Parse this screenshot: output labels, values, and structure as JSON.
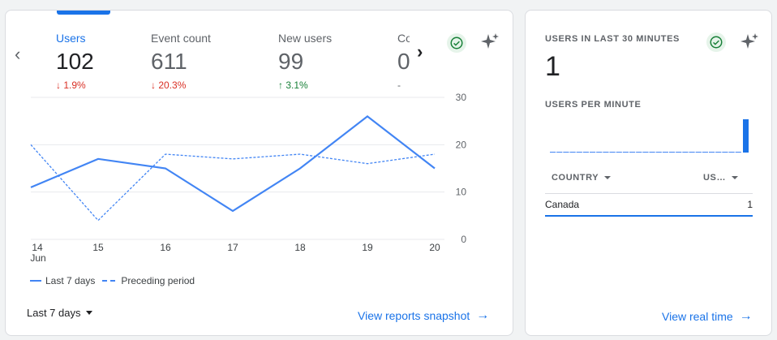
{
  "overview": {
    "metrics": [
      {
        "label": "Users",
        "value": "102",
        "delta_icon": "arrow-down-icon",
        "delta_text": "1.9%",
        "direction": "down"
      },
      {
        "label": "Event count",
        "value": "611",
        "delta_icon": "arrow-down-icon",
        "delta_text": "20.3%",
        "direction": "down"
      },
      {
        "label": "New users",
        "value": "99",
        "delta_icon": "arrow-up-icon",
        "delta_text": "3.1%",
        "direction": "up"
      },
      {
        "label": "Co",
        "value": "0",
        "delta_text": "-"
      }
    ],
    "date_range": "Last 7 days",
    "link": "View reports snapshot"
  },
  "chart_data": {
    "type": "line",
    "categories": [
      "14",
      "15",
      "16",
      "17",
      "18",
      "19",
      "20"
    ],
    "x_sublabel": "Jun",
    "ylim": [
      0,
      30
    ],
    "yticks": [
      0,
      10,
      20,
      30
    ],
    "grid": true,
    "series": [
      {
        "name": "Last 7 days",
        "style": "solid",
        "color": "#4285f4",
        "values": [
          11,
          17,
          15,
          6,
          15,
          26,
          15
        ]
      },
      {
        "name": "Preceding period",
        "style": "dashed",
        "color": "#4285f4",
        "values": [
          20,
          4,
          18,
          17,
          18,
          16,
          18
        ]
      }
    ]
  },
  "realtime": {
    "heading": "USERS IN LAST 30 MINUTES",
    "value": "1",
    "sub_heading": "USERS PER MINUTE",
    "per_minute": [
      0,
      0,
      0,
      0,
      0,
      0,
      0,
      0,
      0,
      0,
      0,
      0,
      0,
      0,
      0,
      0,
      0,
      0,
      0,
      0,
      0,
      0,
      0,
      0,
      0,
      0,
      0,
      0,
      0,
      1
    ],
    "table": {
      "col_country": "COUNTRY",
      "col_users": "US…",
      "rows": [
        {
          "country": "Canada",
          "users": "1"
        }
      ]
    },
    "link": "View real time"
  },
  "colors": {
    "accent": "#1a73e8",
    "down": "#d93025",
    "up": "#188038"
  }
}
